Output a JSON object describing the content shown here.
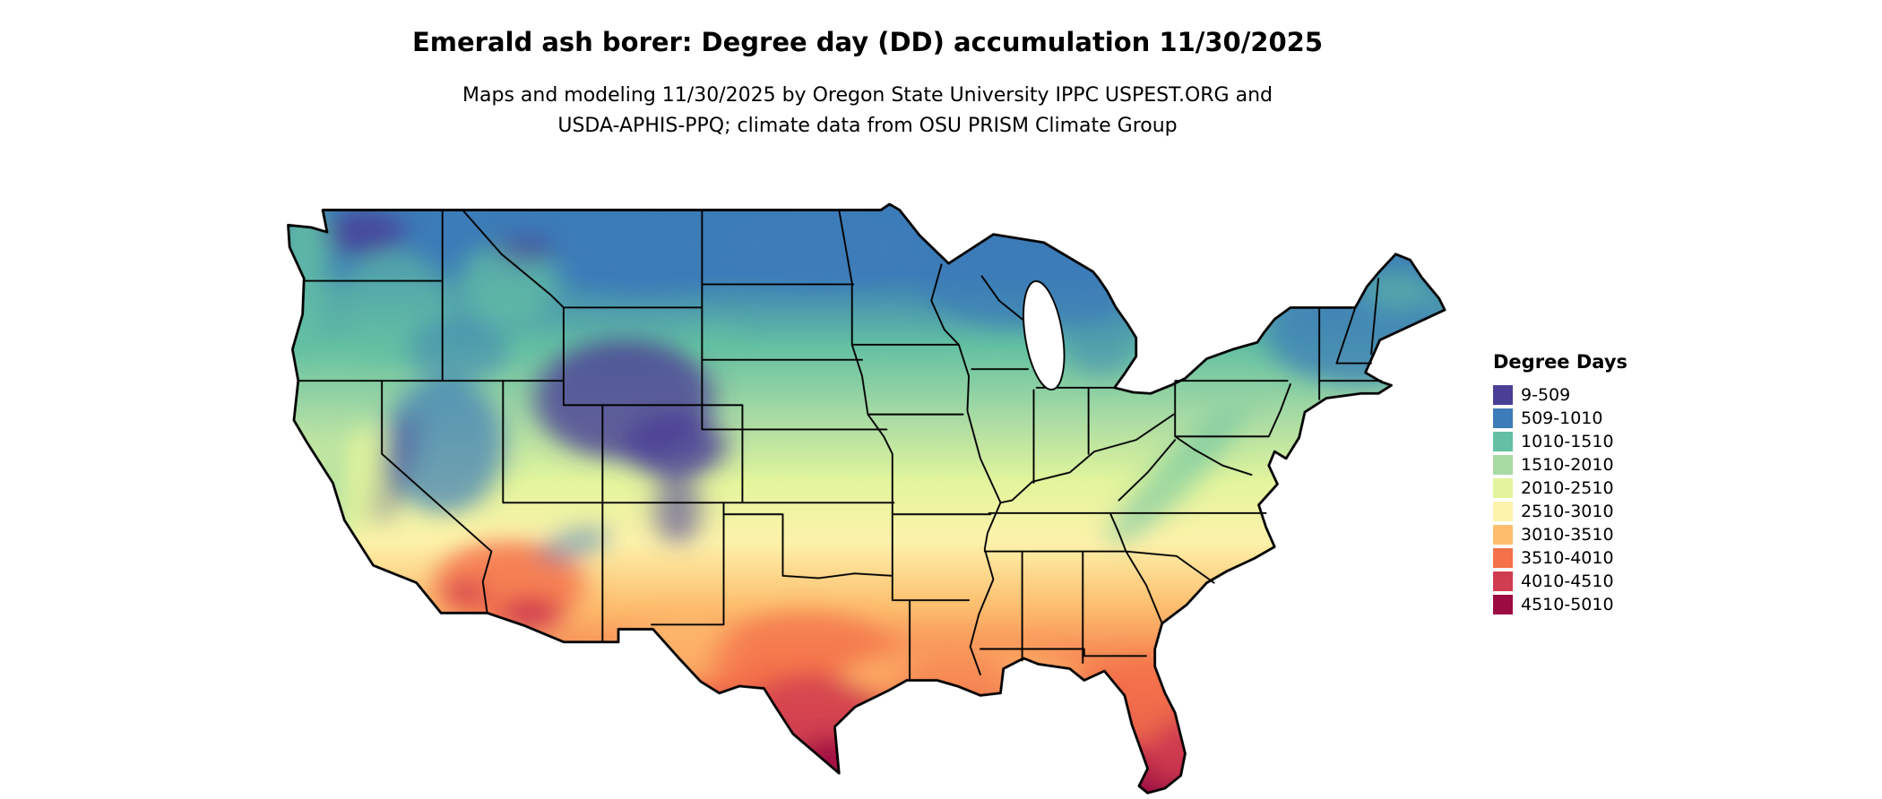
{
  "header": {
    "title": "Emerald ash borer: Degree day (DD) accumulation 11/30/2025",
    "subtitle_line1": "Maps and modeling 11/30/2025 by Oregon State University IPPC USPEST.ORG and",
    "subtitle_line2": "USDA-APHIS-PPQ; climate data from OSU PRISM Climate Group"
  },
  "legend": {
    "title": "Degree Days",
    "items": [
      {
        "range": "9-509",
        "color": "#4a3f96"
      },
      {
        "range": "509-1010",
        "color": "#3c7cb8"
      },
      {
        "range": "1010-1510",
        "color": "#63c0a2"
      },
      {
        "range": "1510-2010",
        "color": "#a8dba4"
      },
      {
        "range": "2010-2510",
        "color": "#e3f59c"
      },
      {
        "range": "2510-3010",
        "color": "#fdf2aa"
      },
      {
        "range": "3010-3510",
        "color": "#fdbd6d"
      },
      {
        "range": "3510-4010",
        "color": "#f4714a"
      },
      {
        "range": "4010-4510",
        "color": "#d03d50"
      },
      {
        "range": "4510-5010",
        "color": "#9c0b42"
      }
    ]
  }
}
